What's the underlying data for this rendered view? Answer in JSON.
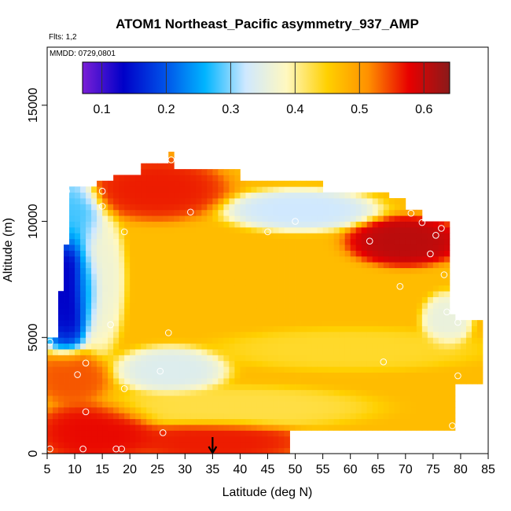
{
  "chart_data": {
    "type": "heatmap",
    "title": "ATOM1 Northeast_Pacific asymmetry_937_AMP",
    "flights_label": "Flts: 1,2",
    "dates_label": "MMDD: 0729,0801",
    "xlabel": "Latitude (deg N)",
    "ylabel": "Altitude (m)",
    "xlim": [
      5,
      85
    ],
    "ylim": [
      0,
      17500
    ],
    "x_ticks": [
      5,
      10,
      15,
      20,
      25,
      30,
      35,
      40,
      45,
      50,
      55,
      60,
      65,
      70,
      75,
      80,
      85
    ],
    "y_ticks": [
      0,
      5000,
      10000,
      15000
    ],
    "colorbar": {
      "range": [
        0.07,
        0.64
      ],
      "ticks": [
        0.1,
        0.2,
        0.3,
        0.4,
        0.5,
        0.6
      ],
      "stops": [
        "#7a1fd6",
        "#0000c8",
        "#0050e8",
        "#00b4ff",
        "#cfe8ff",
        "#fff8c0",
        "#ffd000",
        "#ff9000",
        "#e80000",
        "#8a1a1a"
      ]
    },
    "grid": false,
    "legend": "none",
    "marker_latitude": 35,
    "field_regions": [
      {
        "lat": [
          5,
          84
        ],
        "alt": [
          0,
          12500
        ],
        "value": 0.47
      },
      {
        "lat": [
          5,
          22
        ],
        "alt": [
          0,
          1800
        ],
        "value": 0.59
      },
      {
        "lat": [
          22,
          49
        ],
        "alt": [
          0,
          1000
        ],
        "value": 0.58
      },
      {
        "lat": [
          5,
          14
        ],
        "alt": [
          2500,
          4000
        ],
        "value": 0.55
      },
      {
        "lat": [
          5,
          12
        ],
        "alt": [
          5000,
          9000
        ],
        "value": 0.08
      },
      {
        "lat": [
          8,
          13
        ],
        "alt": [
          9000,
          11500
        ],
        "value": 0.25
      },
      {
        "lat": [
          12,
          17
        ],
        "alt": [
          5000,
          10000
        ],
        "value": 0.35
      },
      {
        "lat": [
          15,
          35
        ],
        "alt": [
          10500,
          12300
        ],
        "value": 0.58
      },
      {
        "lat": [
          40,
          62
        ],
        "alt": [
          10000,
          11000
        ],
        "value": 0.3
      },
      {
        "lat": [
          62,
          78
        ],
        "alt": [
          8500,
          9800
        ],
        "value": 0.63
      },
      {
        "lat": [
          20,
          35
        ],
        "alt": [
          3000,
          4200
        ],
        "value": 0.32
      },
      {
        "lat": [
          40,
          80
        ],
        "alt": [
          4000,
          5000
        ],
        "value": 0.43
      },
      {
        "lat": [
          20,
          60
        ],
        "alt": [
          1500,
          2500
        ],
        "value": 0.42
      },
      {
        "lat": [
          75,
          80
        ],
        "alt": [
          5000,
          6500
        ],
        "value": 0.34
      }
    ],
    "observation_points": [
      {
        "lat": 5.5,
        "alt": 200
      },
      {
        "lat": 11.5,
        "alt": 200
      },
      {
        "lat": 17.5,
        "alt": 200
      },
      {
        "lat": 18.5,
        "alt": 200
      },
      {
        "lat": 12,
        "alt": 1800
      },
      {
        "lat": 26,
        "alt": 900
      },
      {
        "lat": 78.5,
        "alt": 1200
      },
      {
        "lat": 19,
        "alt": 2800
      },
      {
        "lat": 10.5,
        "alt": 3400
      },
      {
        "lat": 12,
        "alt": 3900
      },
      {
        "lat": 25.5,
        "alt": 3550
      },
      {
        "lat": 66,
        "alt": 3950
      },
      {
        "lat": 79.5,
        "alt": 3350
      },
      {
        "lat": 5.5,
        "alt": 4800
      },
      {
        "lat": 27,
        "alt": 5200
      },
      {
        "lat": 16.5,
        "alt": 5550
      },
      {
        "lat": 79.5,
        "alt": 5650
      },
      {
        "lat": 77.5,
        "alt": 6100
      },
      {
        "lat": 69,
        "alt": 7200
      },
      {
        "lat": 77,
        "alt": 7700
      },
      {
        "lat": 74.5,
        "alt": 8600
      },
      {
        "lat": 63.5,
        "alt": 9150
      },
      {
        "lat": 75.5,
        "alt": 9400
      },
      {
        "lat": 19,
        "alt": 9550
      },
      {
        "lat": 45,
        "alt": 9550
      },
      {
        "lat": 76.5,
        "alt": 9700
      },
      {
        "lat": 50,
        "alt": 10000
      },
      {
        "lat": 73,
        "alt": 9950
      },
      {
        "lat": 31,
        "alt": 10400
      },
      {
        "lat": 71,
        "alt": 10350
      },
      {
        "lat": 15,
        "alt": 10650
      },
      {
        "lat": 8.5,
        "alt": 11300
      },
      {
        "lat": 15,
        "alt": 11300
      },
      {
        "lat": 68,
        "alt": 11350
      },
      {
        "lat": 27.5,
        "alt": 12650
      }
    ]
  }
}
